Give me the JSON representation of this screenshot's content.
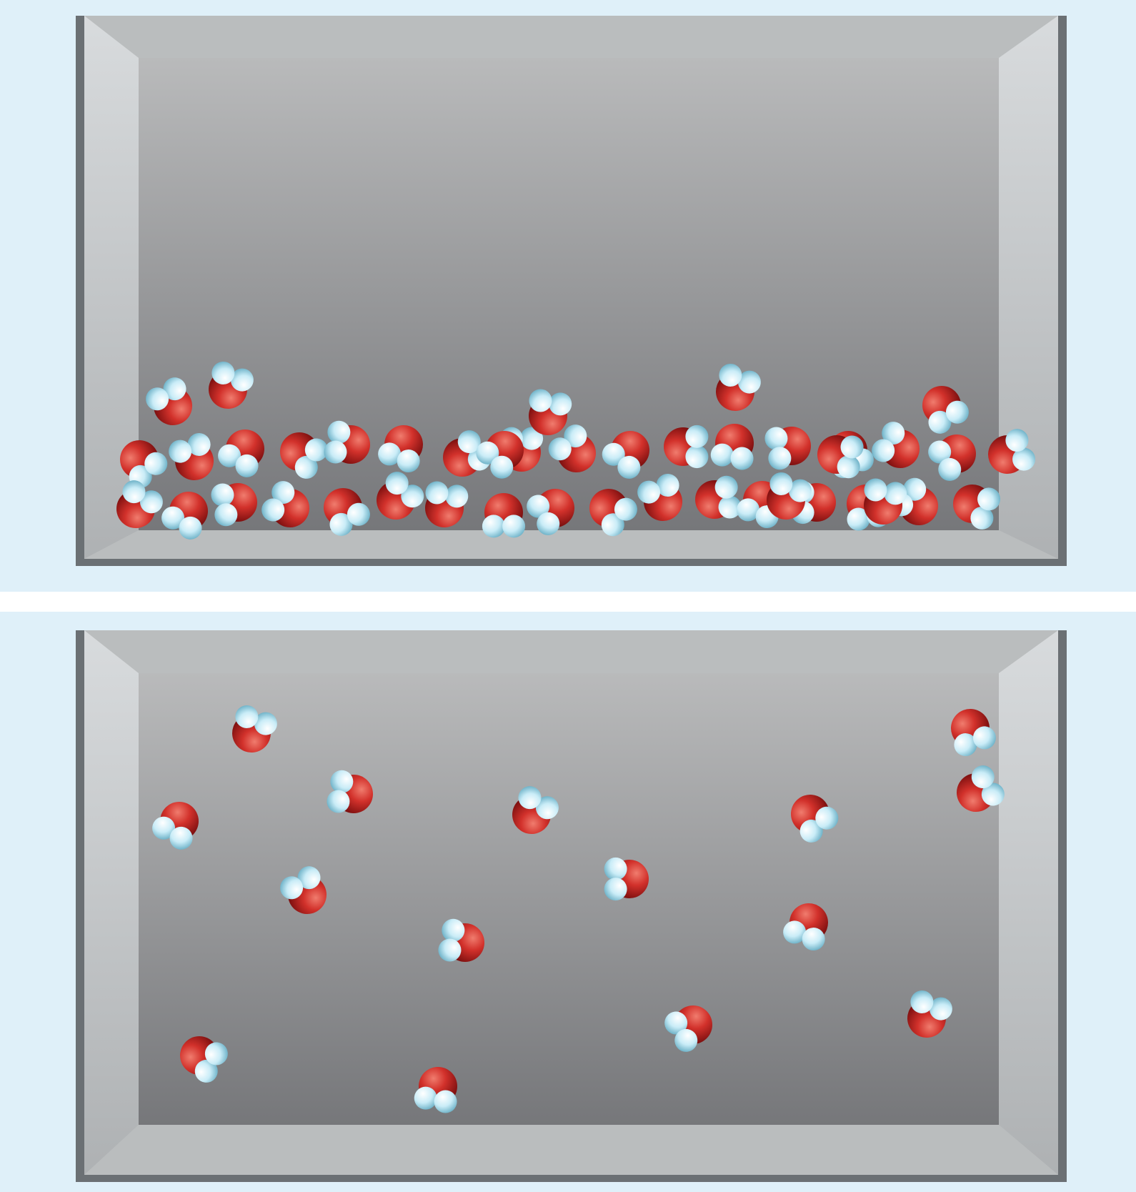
{
  "figure": {
    "background_color": "#dff0f9",
    "divider_color": "#ffffff",
    "container_colors": {
      "rim": "#6b7074",
      "interior_top": "#b9babb",
      "interior_bottom": "#76777a",
      "wall_light": "#d8dbdd",
      "wall_dark": "#aeb1b3",
      "floor": "#babdbe"
    },
    "molecule_colors": {
      "oxygen_light": "#f07c6e",
      "oxygen_mid": "#d2312b",
      "oxygen_dark": "#7b0f0f",
      "hydrogen_light": "#ffffff",
      "hydrogen_mid": "#c9ecf7",
      "hydrogen_dark": "#6bb0c6"
    },
    "panels": [
      {
        "name": "liquid-water-container",
        "state": "liquid",
        "molecule_icon": "water-molecule-icon",
        "molecule_count": 43
      },
      {
        "name": "water-vapor-container",
        "state": "gas",
        "molecule_icon": "water-molecule-icon",
        "molecule_count": 16
      }
    ]
  }
}
